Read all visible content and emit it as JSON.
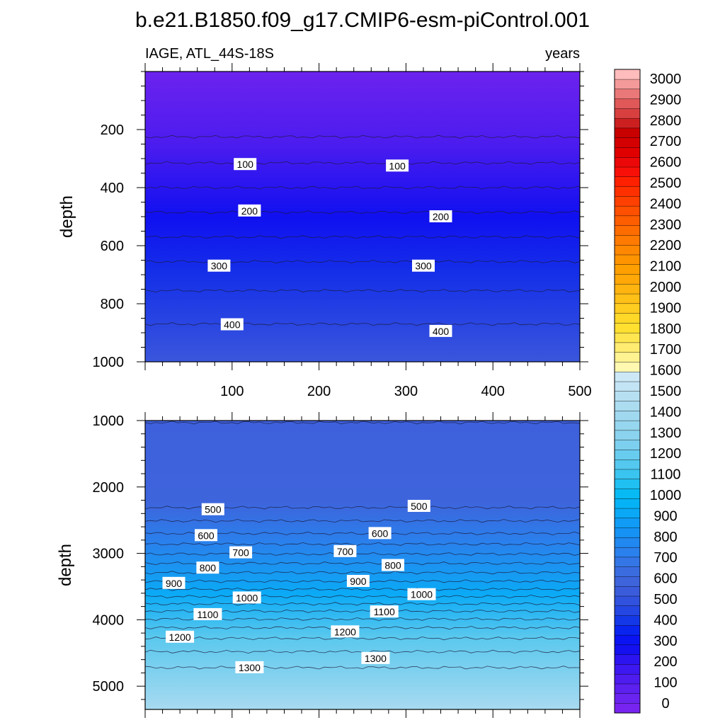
{
  "title": "b.e21.B1850.f09_g17.CMIP6-esm-piControl.001",
  "variable_label": "IAGE, ATL_44S-18S",
  "units_label": "years",
  "chart_data": [
    {
      "type": "heatmap",
      "panel": "upper",
      "ylabel": "depth",
      "xlim": [
        0,
        500
      ],
      "ylim": [
        0,
        1000
      ],
      "y_reversed": true,
      "x_ticks": [
        100,
        200,
        300,
        400,
        500
      ],
      "y_ticks": [
        200,
        400,
        600,
        800,
        1000
      ],
      "contour_lines": [
        {
          "level": 50,
          "depth": 225
        },
        {
          "level": 100,
          "depth": 315
        },
        {
          "level": 150,
          "depth": 400
        },
        {
          "level": 200,
          "depth": 485
        },
        {
          "level": 250,
          "depth": 570
        },
        {
          "level": 300,
          "depth": 655
        },
        {
          "level": 350,
          "depth": 755
        },
        {
          "level": 400,
          "depth": 870
        }
      ],
      "contour_labels": [
        {
          "text": "100",
          "x": 115,
          "y": 320
        },
        {
          "text": "100",
          "x": 290,
          "y": 325
        },
        {
          "text": "200",
          "x": 120,
          "y": 480
        },
        {
          "text": "200",
          "x": 340,
          "y": 500
        },
        {
          "text": "300",
          "x": 85,
          "y": 670
        },
        {
          "text": "300",
          "x": 320,
          "y": 670
        },
        {
          "text": "400",
          "x": 100,
          "y": 872
        },
        {
          "text": "400",
          "x": 340,
          "y": 895
        }
      ]
    },
    {
      "type": "heatmap",
      "panel": "lower",
      "ylabel": "depth",
      "xlim": [
        0,
        500
      ],
      "ylim": [
        1000,
        5350
      ],
      "y_reversed": true,
      "y_ticks": [
        1000,
        2000,
        3000,
        4000,
        5000
      ],
      "contour_lines": [
        {
          "level": 450,
          "depth": 1030
        },
        {
          "level": 500,
          "depth": 2310
        },
        {
          "level": 550,
          "depth": 2510
        },
        {
          "level": 600,
          "depth": 2700
        },
        {
          "level": 650,
          "depth": 2860
        },
        {
          "level": 700,
          "depth": 3010
        },
        {
          "level": 750,
          "depth": 3150
        },
        {
          "level": 800,
          "depth": 3290
        },
        {
          "level": 850,
          "depth": 3420
        },
        {
          "level": 900,
          "depth": 3540
        },
        {
          "level": 950,
          "depth": 3650
        },
        {
          "level": 1000,
          "depth": 3760
        },
        {
          "level": 1050,
          "depth": 3870
        },
        {
          "level": 1100,
          "depth": 3990
        },
        {
          "level": 1150,
          "depth": 4120
        },
        {
          "level": 1200,
          "depth": 4280
        },
        {
          "level": 1250,
          "depth": 4480
        },
        {
          "level": 1300,
          "depth": 4720
        }
      ],
      "contour_labels": [
        {
          "text": "500",
          "x": 78,
          "y": 2340
        },
        {
          "text": "500",
          "x": 315,
          "y": 2290
        },
        {
          "text": "600",
          "x": 70,
          "y": 2730
        },
        {
          "text": "600",
          "x": 270,
          "y": 2700
        },
        {
          "text": "700",
          "x": 110,
          "y": 2990
        },
        {
          "text": "700",
          "x": 230,
          "y": 2970
        },
        {
          "text": "800",
          "x": 72,
          "y": 3220
        },
        {
          "text": "800",
          "x": 285,
          "y": 3180
        },
        {
          "text": "900",
          "x": 33,
          "y": 3450
        },
        {
          "text": "900",
          "x": 245,
          "y": 3420
        },
        {
          "text": "1000",
          "x": 117,
          "y": 3670
        },
        {
          "text": "1000",
          "x": 318,
          "y": 3620
        },
        {
          "text": "1100",
          "x": 72,
          "y": 3920
        },
        {
          "text": "1100",
          "x": 275,
          "y": 3880
        },
        {
          "text": "1200",
          "x": 40,
          "y": 4260
        },
        {
          "text": "1200",
          "x": 230,
          "y": 4180
        },
        {
          "text": "1300",
          "x": 120,
          "y": 4720
        },
        {
          "text": "1300",
          "x": 265,
          "y": 4580
        }
      ]
    }
  ],
  "colorbar": {
    "labels": [
      "0",
      "100",
      "200",
      "300",
      "400",
      "500",
      "600",
      "700",
      "800",
      "900",
      "1000",
      "1100",
      "1200",
      "1300",
      "1400",
      "1500",
      "1600",
      "1700",
      "1800",
      "1900",
      "2000",
      "2100",
      "2200",
      "2300",
      "2400",
      "2500",
      "2600",
      "2700",
      "2800",
      "2900",
      "3000"
    ],
    "colors": [
      "#7824f0",
      "#6a24ef",
      "#5c20ef",
      "#4e1cef",
      "#3e18f0",
      "#2c14f0",
      "#1410f0",
      "#0a14f2",
      "#0a24f0",
      "#1438e8",
      "#2446e2",
      "#3052de",
      "#3a5cdc",
      "#3e64dc",
      "#3a6ce0",
      "#3476e6",
      "#2a80ec",
      "#2088f0",
      "#1692f4",
      "#109cf6",
      "#0aa8f6",
      "#06b2f6",
      "#08baf4",
      "#20c0f2",
      "#3ac4f0",
      "#54c8ee",
      "#68ccee",
      "#7ccfee",
      "#8ad2ee",
      "#96d6ee",
      "#a0d8f0",
      "#acdcf0",
      "#b6e0f2",
      "#c2e4f4",
      "#cce8f6",
      "#fff8b0",
      "#fff290",
      "#ffec70",
      "#ffe650",
      "#ffe030",
      "#ffd828",
      "#ffcc20",
      "#ffc018",
      "#ffb410",
      "#ffa808",
      "#ffa000",
      "#ff9400",
      "#ff8800",
      "#ff7a00",
      "#ff6c00",
      "#ff5e00",
      "#ff5000",
      "#ff4000",
      "#ff3000",
      "#ff2000",
      "#f81008",
      "#ec0808",
      "#e00000",
      "#d40000",
      "#c80000",
      "#cc2020",
      "#d84040",
      "#e05858",
      "#ea7878",
      "#f49a9a",
      "#ffbcbc"
    ]
  }
}
